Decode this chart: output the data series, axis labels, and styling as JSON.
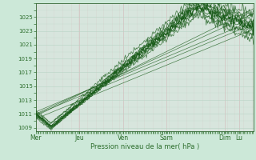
{
  "xlabel": "Pression niveau de la mer( hPa )",
  "x_tick_labels": [
    "Mer",
    "Jeu",
    "Ven",
    "Sam",
    "Dim",
    "Lu"
  ],
  "x_tick_positions": [
    0.0,
    0.2,
    0.4,
    0.6,
    0.867,
    0.933
  ],
  "ylim": [
    1008.5,
    1027.0
  ],
  "xlim": [
    0.0,
    1.0
  ],
  "yticks": [
    1009,
    1011,
    1013,
    1015,
    1017,
    1019,
    1021,
    1023,
    1025
  ],
  "bg_color": "#cce8d8",
  "plot_bg_color": "#d8ede4",
  "vgrid_color": "#d4b8b8",
  "hgrid_color": "#b8d4c4",
  "line_color": "#1a5c1a",
  "tick_color": "#2d6e2d"
}
